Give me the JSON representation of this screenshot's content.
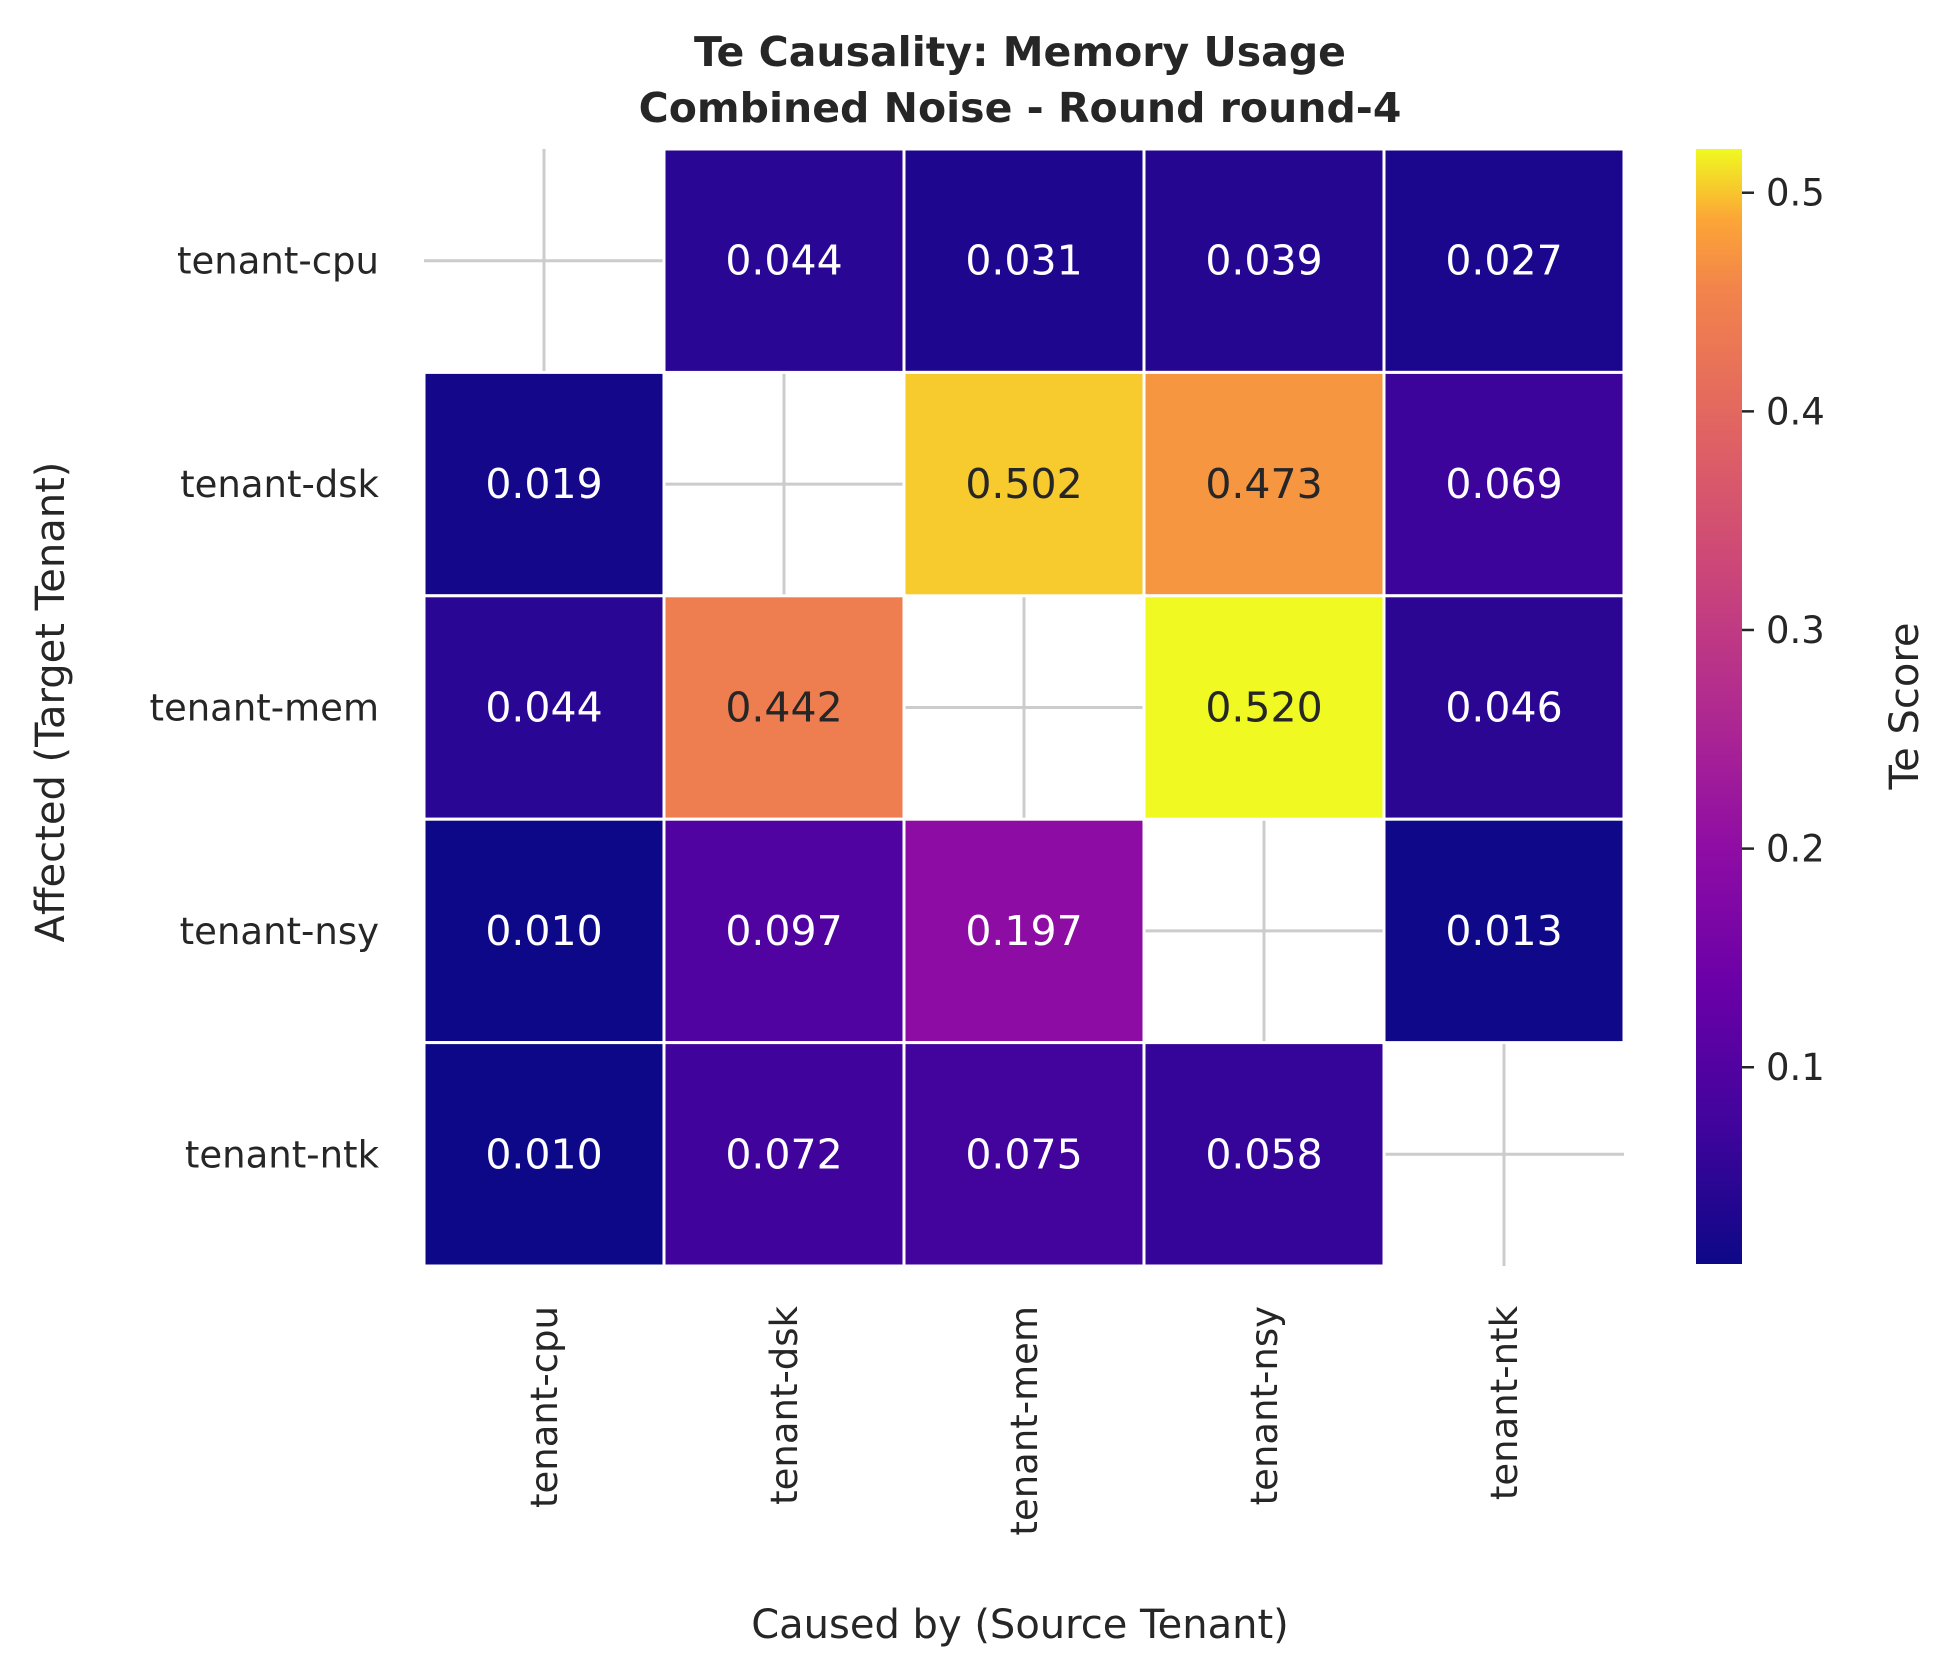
{
  "chart_data": {
    "type": "heatmap",
    "title": "Te Causality: Memory Usage",
    "subtitle": "Combined Noise - Round round-4",
    "xlabel": "Caused by (Source Tenant)",
    "ylabel": "Affected (Target Tenant)",
    "x_categories": [
      "tenant-cpu",
      "tenant-dsk",
      "tenant-mem",
      "tenant-nsy",
      "tenant-ntk"
    ],
    "y_categories": [
      "tenant-cpu",
      "tenant-dsk",
      "tenant-mem",
      "tenant-nsy",
      "tenant-ntk"
    ],
    "values": [
      [
        null,
        0.044,
        0.031,
        0.039,
        0.027
      ],
      [
        0.019,
        null,
        0.502,
        0.473,
        0.069
      ],
      [
        0.044,
        0.442,
        null,
        0.52,
        0.046
      ],
      [
        0.01,
        0.097,
        0.197,
        null,
        0.013
      ],
      [
        0.01,
        0.072,
        0.075,
        0.058,
        null
      ]
    ],
    "value_labels": [
      [
        "",
        "0.044",
        "0.031",
        "0.039",
        "0.027"
      ],
      [
        "0.019",
        "",
        "0.502",
        "0.473",
        "0.069"
      ],
      [
        "0.044",
        "0.442",
        "",
        "0.520",
        "0.046"
      ],
      [
        "0.010",
        "0.097",
        "0.197",
        "",
        "0.013"
      ],
      [
        "0.010",
        "0.072",
        "0.075",
        "0.058",
        ""
      ]
    ],
    "colormap": "plasma",
    "colorbar": {
      "label": "Te Score",
      "vmin": 0.01,
      "vmax": 0.52,
      "ticks": [
        0.1,
        0.2,
        0.3,
        0.4,
        0.5
      ],
      "tick_labels": [
        "0.1",
        "0.2",
        "0.3",
        "0.4",
        "0.5"
      ]
    },
    "grid": true
  }
}
